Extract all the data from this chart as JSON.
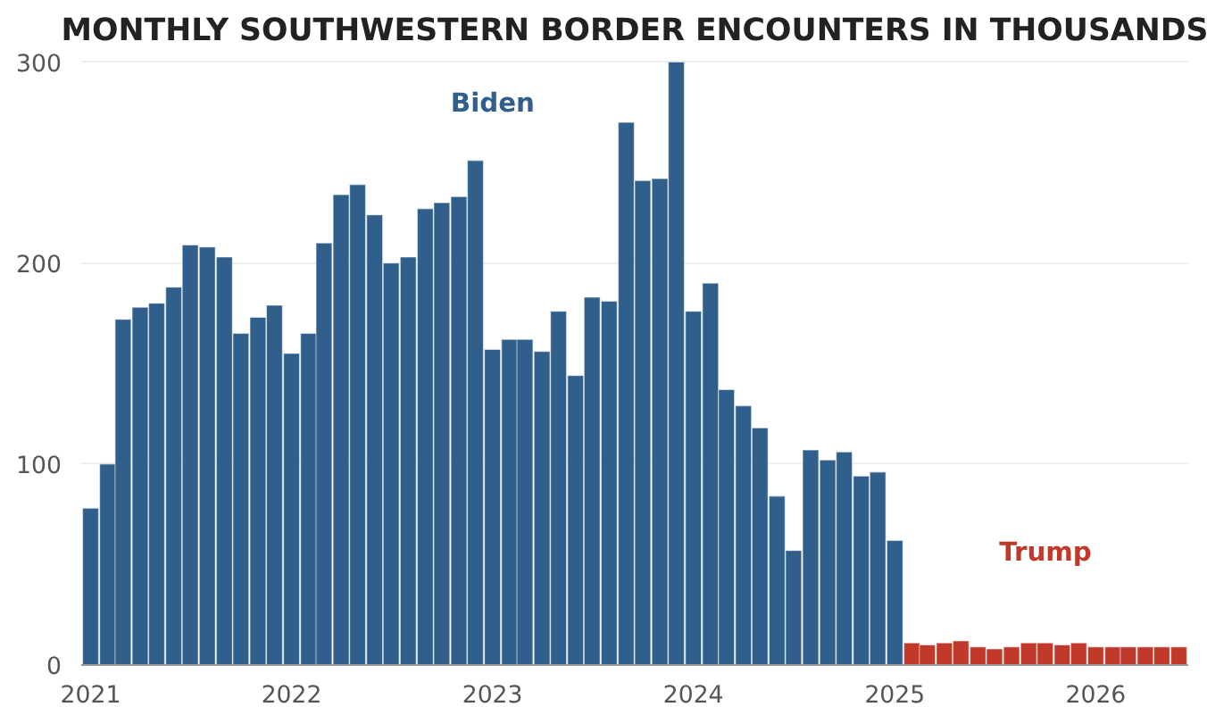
{
  "chart_data": {
    "type": "bar",
    "title": "MONTHLY SOUTHWESTERN BORDER ENCOUNTERS IN THOUSANDS",
    "series": [
      {
        "name": "Biden",
        "color": "#2f5f8a",
        "x": [
          "2021-01",
          "2021-02",
          "2021-03",
          "2021-04",
          "2021-05",
          "2021-06",
          "2021-07",
          "2021-08",
          "2021-09",
          "2021-10",
          "2021-11",
          "2021-12",
          "2022-01",
          "2022-02",
          "2022-03",
          "2022-04",
          "2022-05",
          "2022-06",
          "2022-07",
          "2022-08",
          "2022-09",
          "2022-10",
          "2022-11",
          "2022-12",
          "2023-01",
          "2023-02",
          "2023-03",
          "2023-04",
          "2023-05",
          "2023-06",
          "2023-07",
          "2023-08",
          "2023-09",
          "2023-10",
          "2023-11",
          "2023-12",
          "2024-01",
          "2024-02",
          "2024-03",
          "2024-04",
          "2024-05",
          "2024-06",
          "2024-07",
          "2024-08",
          "2024-09",
          "2024-10",
          "2024-11",
          "2024-12",
          "2025-01"
        ],
        "values": [
          78,
          100,
          172,
          178,
          180,
          188,
          209,
          208,
          203,
          165,
          173,
          179,
          155,
          165,
          210,
          234,
          239,
          224,
          200,
          203,
          227,
          230,
          233,
          251,
          157,
          162,
          162,
          156,
          176,
          144,
          183,
          181,
          270,
          241,
          242,
          300,
          176,
          190,
          137,
          129,
          118,
          84,
          57,
          107,
          102,
          106,
          94,
          96,
          62
        ]
      },
      {
        "name": "Trump",
        "color": "#c0392b",
        "x": [
          "2025-02",
          "2025-03",
          "2025-04",
          "2025-05",
          "2025-06",
          "2025-07",
          "2025-08",
          "2025-09",
          "2025-10",
          "2025-11",
          "2025-12",
          "2026-01",
          "2026-02",
          "2026-03",
          "2026-04",
          "2026-05",
          "2026-06"
        ],
        "values": [
          11,
          10,
          11,
          12,
          9,
          8,
          9,
          11,
          11,
          10,
          11,
          9,
          9,
          9,
          9,
          9,
          9
        ]
      }
    ],
    "xlim": [
      "2020-12-15",
      "2026-06-18"
    ],
    "xticks": [
      {
        "value": "2021-01",
        "label": "2021"
      },
      {
        "value": "2022-01",
        "label": "2022"
      },
      {
        "value": "2023-01",
        "label": "2023"
      },
      {
        "value": "2024-01",
        "label": "2024"
      },
      {
        "value": "2025-01",
        "label": "2025"
      },
      {
        "value": "2026-01",
        "label": "2026"
      }
    ],
    "ylim": [
      0,
      302
    ],
    "yticks": [
      0,
      100,
      200,
      300
    ],
    "grid": "y",
    "legend": false
  }
}
